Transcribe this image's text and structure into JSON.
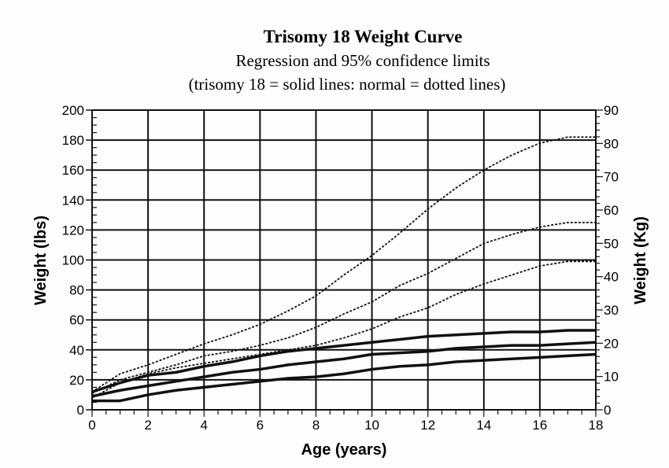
{
  "chart_data": {
    "type": "line",
    "title": "Trisomy 18 Weight Curve",
    "subtitle": "Regression and 95% confidence limits",
    "subtitle2": "(trisomy 18 = solid lines: normal = dotted lines)",
    "xlabel": "Age (years)",
    "ylabel": "Weight (lbs)",
    "y2label": "Weight (Kg)",
    "xlim": [
      0,
      18
    ],
    "ylim": [
      0,
      200
    ],
    "y2lim": [
      0,
      90
    ],
    "xticks": [
      "0",
      "2",
      "4",
      "6",
      "8",
      "10",
      "12",
      "14",
      "16",
      "18"
    ],
    "yticks": [
      "0",
      "20",
      "40",
      "60",
      "80",
      "100",
      "120",
      "140",
      "160",
      "180",
      "200"
    ],
    "y2ticks": [
      "0",
      "10",
      "20",
      "30",
      "40",
      "50",
      "60",
      "70",
      "80",
      "90"
    ],
    "grid": true,
    "x": [
      0,
      1,
      2,
      3,
      4,
      5,
      6,
      7,
      8,
      9,
      10,
      11,
      12,
      13,
      14,
      15,
      16,
      17,
      18
    ],
    "series": [
      {
        "name": "normal upper 95%",
        "style": "dotted",
        "values": [
          12,
          24,
          30,
          37,
          44,
          50,
          57,
          66,
          76,
          90,
          103,
          118,
          134,
          148,
          160,
          170,
          178,
          182,
          182
        ]
      },
      {
        "name": "normal regression",
        "style": "dotted",
        "values": [
          11,
          20,
          25,
          30,
          36,
          39,
          43,
          48,
          55,
          64,
          72,
          83,
          91,
          101,
          111,
          117,
          122,
          125,
          125
        ]
      },
      {
        "name": "normal lower 95%",
        "style": "dotted",
        "values": [
          8,
          18,
          24,
          28,
          31,
          34,
          37,
          40,
          43,
          48,
          54,
          62,
          68,
          77,
          84,
          90,
          96,
          99,
          99
        ]
      },
      {
        "name": "trisomy 18 upper 95%",
        "style": "solid",
        "values": [
          12,
          18,
          23,
          25,
          29,
          32,
          36,
          39,
          41,
          43,
          45,
          47,
          49,
          50,
          51,
          52,
          52,
          53,
          53
        ]
      },
      {
        "name": "trisomy 18 regression",
        "style": "solid",
        "values": [
          9,
          13,
          16,
          19,
          22,
          25,
          27,
          30,
          32,
          34,
          37,
          38,
          39,
          41,
          42,
          43,
          43,
          44,
          45
        ]
      },
      {
        "name": "trisomy 18 lower 95%",
        "style": "solid",
        "values": [
          6,
          6,
          10,
          13,
          15,
          17,
          19,
          21,
          22,
          24,
          27,
          29,
          30,
          32,
          33,
          34,
          35,
          36,
          37
        ]
      }
    ]
  }
}
